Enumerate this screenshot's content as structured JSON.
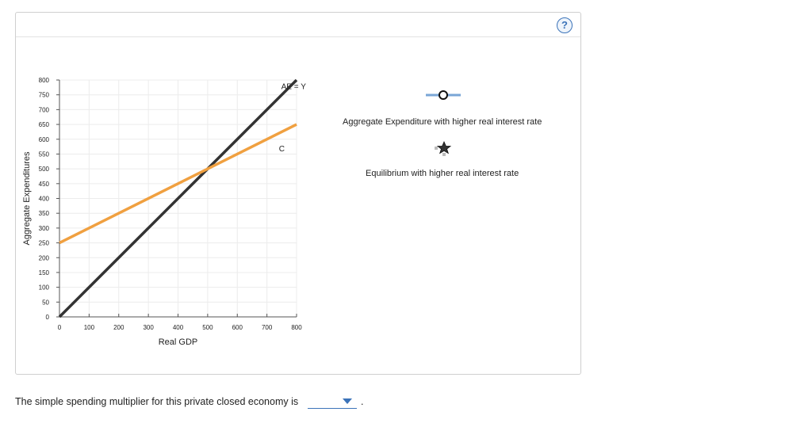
{
  "help": {
    "label": "?"
  },
  "chart_data": {
    "type": "line",
    "xlabel": "Real GDP",
    "ylabel": "Aggregate Expenditures",
    "xlim": [
      0,
      800
    ],
    "ylim": [
      0,
      800
    ],
    "x_ticks": [
      0,
      100,
      200,
      300,
      400,
      500,
      600,
      700,
      800
    ],
    "y_ticks": [
      0,
      50,
      100,
      150,
      200,
      250,
      300,
      350,
      400,
      450,
      500,
      550,
      600,
      650,
      700,
      750,
      800
    ],
    "grid": true,
    "series": [
      {
        "name": "AE = Y",
        "color": "#333333",
        "x": [
          0,
          800
        ],
        "y": [
          0,
          800
        ]
      },
      {
        "name": "C",
        "color": "#f0a040",
        "x": [
          0,
          800
        ],
        "y": [
          250,
          650
        ]
      }
    ],
    "annotations": [
      {
        "text": "AE = Y",
        "x": 790,
        "y": 780
      },
      {
        "text": "C",
        "x": 750,
        "y": 570
      }
    ]
  },
  "tools": {
    "ae_tool": {
      "label": "Aggregate Expenditure with higher real interest rate",
      "color": "#7aa6d6"
    },
    "eq_tool": {
      "label": "Equilibrium with higher real interest rate",
      "color": "#333333"
    }
  },
  "question": {
    "text": "The simple spending multiplier for this private closed economy is",
    "selected": "",
    "suffix": "."
  }
}
